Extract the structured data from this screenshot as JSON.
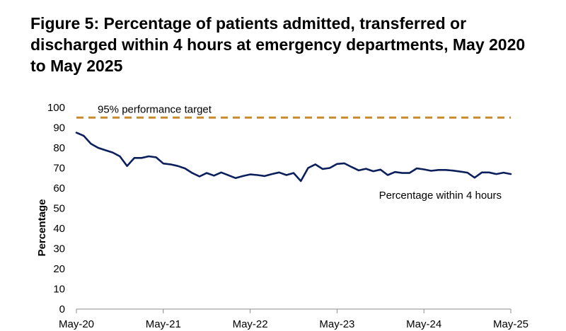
{
  "chart_data": {
    "type": "line",
    "title": "Figure 5: Percentage of patients admitted, transferred or discharged within 4 hours at emergency departments, May 2020 to May 2025",
    "ylabel": "Percentage",
    "xlabel": "",
    "ylim": [
      0,
      100
    ],
    "yticks": [
      0,
      10,
      20,
      30,
      40,
      50,
      60,
      70,
      80,
      90,
      100
    ],
    "xticks": [
      {
        "label": "May-20",
        "index": 0
      },
      {
        "label": "May-21",
        "index": 12
      },
      {
        "label": "May-22",
        "index": 24
      },
      {
        "label": "May-23",
        "index": 36
      },
      {
        "label": "May-24",
        "index": 48
      },
      {
        "label": "May-25",
        "index": 60
      }
    ],
    "series": [
      {
        "name": "Percentage within 4 hours",
        "color": "#0b1f5c",
        "values": [
          87.5,
          86,
          82,
          80,
          78.8,
          77.7,
          75.8,
          71,
          75,
          75,
          75.8,
          75.3,
          72.2,
          71.8,
          71,
          69.8,
          67.5,
          65.8,
          67.5,
          66.2,
          67.8,
          66.4,
          65,
          66,
          66.8,
          66.5,
          66,
          67,
          67.8,
          66.5,
          67.5,
          63.5,
          70,
          71.8,
          69.5,
          70,
          72,
          72.3,
          70.5,
          68.8,
          69.6,
          68.4,
          69.2,
          66.5,
          68,
          67.5,
          67.5,
          69.8,
          69.3,
          68.6,
          69,
          69,
          68.7,
          68.2,
          67.7,
          65.2,
          67.8,
          67.8,
          67,
          67.7,
          67
        ]
      }
    ],
    "reference_lines": [
      {
        "label": "95% performance target",
        "value": 95,
        "color": "#c88a2e",
        "style": "dashed"
      }
    ],
    "annotations": [
      {
        "text": "Percentage within 4 hours"
      }
    ],
    "grid": false,
    "legend": "none"
  }
}
